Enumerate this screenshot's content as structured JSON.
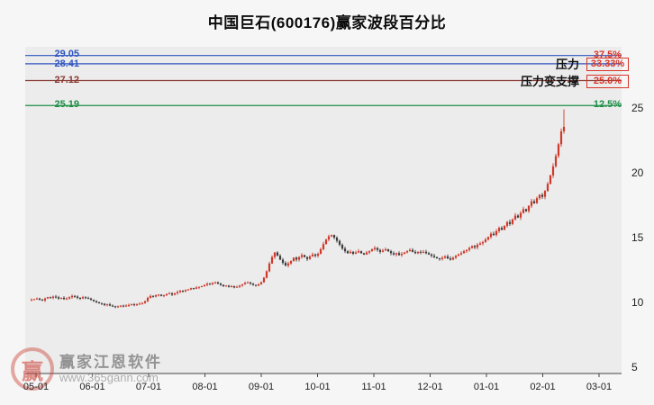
{
  "title": "中国巨石(600176)赢家波段百分比",
  "watermark": {
    "logo_text": "赢",
    "brand": "赢家江恩软件",
    "url": "www.365gann.com"
  },
  "chart_data": {
    "type": "candlestick",
    "title": "中国巨石(600176)赢家波段百分比",
    "x_ticks": [
      "05-01",
      "06-01",
      "07-01",
      "08-01",
      "09-01",
      "10-01",
      "11-01",
      "12-01",
      "01-01",
      "02-01",
      "03-01"
    ],
    "y_ticks": [
      25,
      20,
      15,
      10,
      5
    ],
    "y_axis_side": "right",
    "y_range": [
      4.5,
      29.6
    ],
    "grid": "off",
    "plot_bg": "#ececec",
    "axis_color": "#444444",
    "up_color": "#cf382a",
    "down_color": "#3c3c3c",
    "first_open": 10.15,
    "last_high": 24.9,
    "levels": [
      {
        "price": "29.05",
        "value": 29.05,
        "percent": "37.5%",
        "line_color": "#2e55c0",
        "price_color": "#2e55c0",
        "percent_color": "#d93528",
        "boxed": false,
        "annotation": ""
      },
      {
        "price": "28.41",
        "value": 28.41,
        "percent": "33.33%",
        "line_color": "#2e55c0",
        "price_color": "#2e55c0",
        "percent_color": "#d93528",
        "box_color": "#d93528",
        "boxed": true,
        "annotation": "压力"
      },
      {
        "price": "27.12",
        "value": 27.12,
        "percent": "25.0%",
        "line_color": "#8a3a34",
        "price_color": "#8a3a34",
        "percent_color": "#d93528",
        "box_color": "#d93528",
        "boxed": true,
        "annotation": "压力变支撑"
      },
      {
        "price": "25.19",
        "value": 25.19,
        "percent": "12.5%",
        "line_color": "#1d8f46",
        "price_color": "#1d8f46",
        "percent_color": "#1d8f46",
        "boxed": false,
        "annotation": ""
      }
    ],
    "closes": [
      10.2,
      10.25,
      10.3,
      10.2,
      10.15,
      10.3,
      10.4,
      10.35,
      10.45,
      10.4,
      10.3,
      10.35,
      10.25,
      10.3,
      10.4,
      10.5,
      10.45,
      10.35,
      10.3,
      10.4,
      10.35,
      10.3,
      10.2,
      10.1,
      10.0,
      9.95,
      9.9,
      9.8,
      9.85,
      9.75,
      9.7,
      9.65,
      9.7,
      9.75,
      9.7,
      9.75,
      9.8,
      9.85,
      9.8,
      9.85,
      9.9,
      9.95,
      10.1,
      10.35,
      10.5,
      10.45,
      10.55,
      10.6,
      10.5,
      10.55,
      10.65,
      10.7,
      10.6,
      10.7,
      10.8,
      10.9,
      10.85,
      10.95,
      11.0,
      11.1,
      11.05,
      11.15,
      11.2,
      11.25,
      11.35,
      11.45,
      11.4,
      11.5,
      11.55,
      11.45,
      11.35,
      11.25,
      11.3,
      11.2,
      11.25,
      11.15,
      11.2,
      11.3,
      11.4,
      11.5,
      11.55,
      11.45,
      11.35,
      11.3,
      11.4,
      11.55,
      11.9,
      12.4,
      13.0,
      13.5,
      13.85,
      13.6,
      13.3,
      13.05,
      12.85,
      13.0,
      13.2,
      13.45,
      13.3,
      13.5,
      13.65,
      13.5,
      13.35,
      13.55,
      13.7,
      13.6,
      13.75,
      14.1,
      14.5,
      14.85,
      15.1,
      15.2,
      15.0,
      14.75,
      14.45,
      14.15,
      13.95,
      13.8,
      13.9,
      13.75,
      13.85,
      13.95,
      13.8,
      13.7,
      13.85,
      13.95,
      14.1,
      14.2,
      14.05,
      13.9,
      14.0,
      14.1,
      13.95,
      13.8,
      13.7,
      13.8,
      13.65,
      13.75,
      13.85,
      13.95,
      14.05,
      13.9,
      13.8,
      13.9,
      13.85,
      13.9,
      13.8,
      13.7,
      13.6,
      13.5,
      13.4,
      13.35,
      13.45,
      13.55,
      13.4,
      13.3,
      13.45,
      13.6,
      13.7,
      13.8,
      13.95,
      14.05,
      14.2,
      14.35,
      14.25,
      14.45,
      14.55,
      14.65,
      14.85,
      15.05,
      15.3,
      15.2,
      15.5,
      15.75,
      15.6,
      15.9,
      16.2,
      16.05,
      16.4,
      16.7,
      16.55,
      16.9,
      17.2,
      17.05,
      17.45,
      17.8,
      17.65,
      18.05,
      18.3,
      18.15,
      18.6,
      19.15,
      19.8,
      20.5,
      21.3,
      22.2,
      23.2,
      23.55
    ]
  }
}
